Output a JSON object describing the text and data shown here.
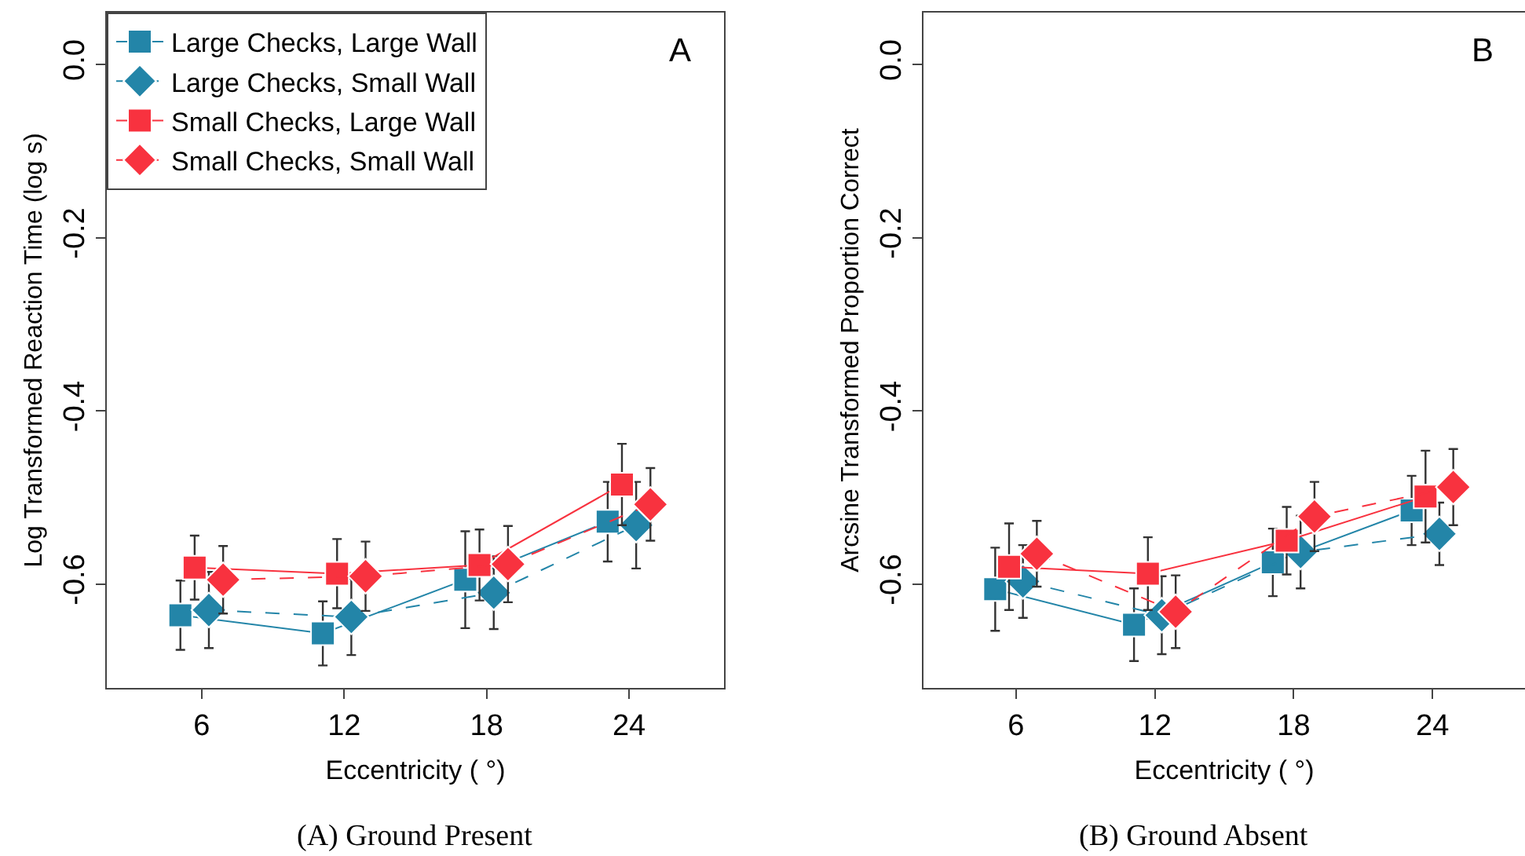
{
  "chart_data": [
    {
      "type": "line",
      "xlabel": "Eccentricity ( °)",
      "ylabel": "Log Transformed Reaction Time (log s)",
      "annotations": [
        "A",
        "(A) Ground Present"
      ],
      "xlim": [
        2,
        28
      ],
      "xticks": [
        6,
        12,
        18,
        24
      ],
      "ylim": [
        -0.72,
        0.06
      ],
      "yticks": [
        {
          "value": 0,
          "label": "0.0"
        },
        {
          "value": -0.2,
          "label": "-0.2"
        },
        {
          "value": -0.4,
          "label": "-0.4"
        },
        {
          "value": -0.6,
          "label": "-0.6"
        }
      ],
      "legend": "top left",
      "series": [
        {
          "name": "Large Checks, Large Wall",
          "color": "#2385a8",
          "marker": "square",
          "line_style": "solid",
          "x": [
            5.1,
            11.1,
            17.1,
            23.1
          ],
          "values": [
            -0.636,
            -0.657,
            -0.595,
            -0.528
          ],
          "errors": [
            0.04,
            0.037,
            0.056,
            0.046
          ]
        },
        {
          "name": "Large Checks, Small Wall",
          "color": "#2385a8",
          "marker": "diamond",
          "line_style": "dashed",
          "x": [
            6.3,
            12.3,
            18.3,
            24.3
          ],
          "values": [
            -0.63,
            -0.638,
            -0.61,
            -0.532
          ],
          "errors": [
            0.044,
            0.044,
            0.042,
            0.05
          ]
        },
        {
          "name": "Small Checks, Large Wall",
          "color": "#f8323f",
          "marker": "square",
          "line_style": "solid",
          "x": [
            5.7,
            11.7,
            17.7,
            23.7
          ],
          "values": [
            -0.581,
            -0.588,
            -0.578,
            -0.485
          ],
          "errors": [
            0.037,
            0.04,
            0.041,
            0.047
          ]
        },
        {
          "name": "Small Checks, Small Wall",
          "color": "#f8323f",
          "marker": "diamond",
          "line_style": "dashed",
          "x": [
            6.9,
            12.9,
            18.9,
            24.9
          ],
          "values": [
            -0.595,
            -0.591,
            -0.577,
            -0.508
          ],
          "errors": [
            0.039,
            0.04,
            0.044,
            0.042
          ]
        }
      ]
    },
    {
      "type": "line",
      "xlabel": "Eccentricity ( °)",
      "ylabel": "Arcsine Transformed Proportion Correct",
      "annotations": [
        "B",
        "(B) Ground Absent"
      ],
      "xlim": [
        2,
        28
      ],
      "xticks": [
        6,
        12,
        18,
        24
      ],
      "ylim": [
        -0.72,
        0.06
      ],
      "yticks": [
        {
          "value": 0,
          "label": "0.0"
        },
        {
          "value": -0.2,
          "label": "-0.2"
        },
        {
          "value": -0.4,
          "label": "-0.4"
        },
        {
          "value": -0.6,
          "label": "-0.6"
        }
      ],
      "series": [
        {
          "color": "#2385a8",
          "marker": "square",
          "line_style": "solid",
          "x": [
            5.1,
            11.1,
            17.1,
            23.1
          ],
          "values": [
            -0.606,
            -0.647,
            -0.575,
            -0.515
          ],
          "errors": [
            0.048,
            0.042,
            0.039,
            0.04
          ]
        },
        {
          "color": "#2385a8",
          "marker": "diamond",
          "line_style": "dashed",
          "x": [
            6.3,
            12.3,
            18.3,
            24.3
          ],
          "values": [
            -0.597,
            -0.636,
            -0.563,
            -0.542
          ],
          "errors": [
            0.042,
            0.045,
            0.042,
            0.036
          ]
        },
        {
          "color": "#f8323f",
          "marker": "square",
          "line_style": "solid",
          "x": [
            5.7,
            11.7,
            17.7,
            23.7
          ],
          "values": [
            -0.58,
            -0.588,
            -0.55,
            -0.499
          ],
          "errors": [
            0.05,
            0.042,
            0.039,
            0.053
          ]
        },
        {
          "color": "#f8323f",
          "marker": "diamond",
          "line_style": "dashed",
          "x": [
            6.9,
            12.9,
            18.9,
            24.9
          ],
          "values": [
            -0.565,
            -0.632,
            -0.522,
            -0.488
          ],
          "errors": [
            0.038,
            0.042,
            0.04,
            0.044
          ]
        }
      ]
    }
  ]
}
